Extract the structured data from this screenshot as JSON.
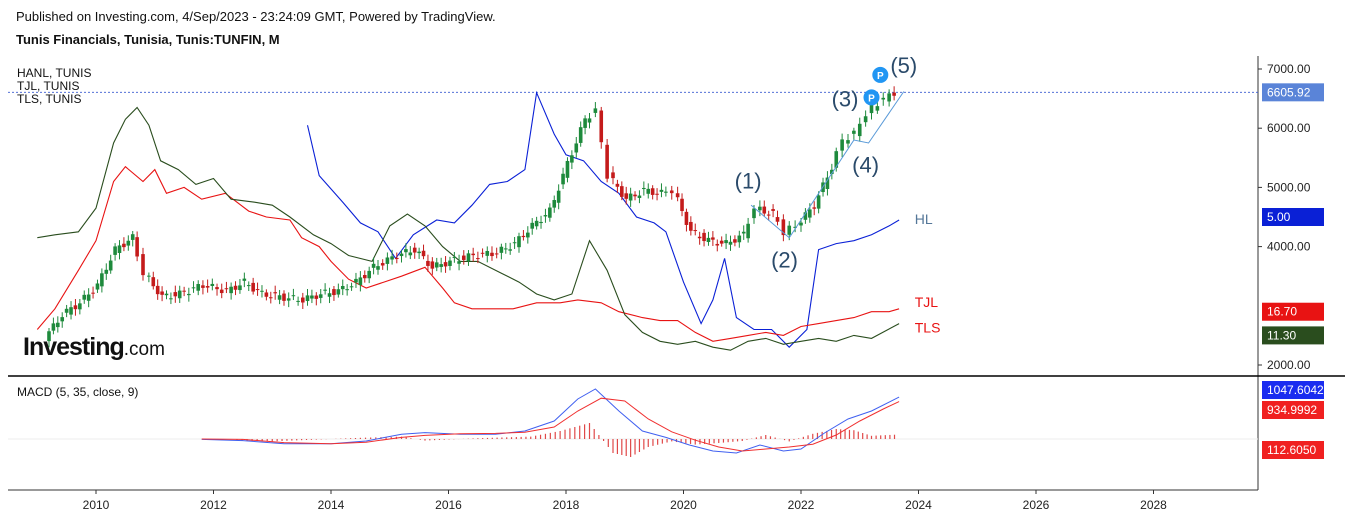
{
  "header": {
    "published": "Published on Investing.com, 4/Sep/2023 - 23:24:09 GMT, Powered by TradingView.",
    "symbol": "Tunis Financials, Tunisia, Tunis:TUNFIN, M"
  },
  "overlays": [
    "HANL, TUNIS",
    "TJL, TUNIS",
    "TLS, TUNIS"
  ],
  "watermark": {
    "brand": "Investing",
    "suffix": ".com"
  },
  "macd": {
    "label": "MACD (5, 35, close, 9)"
  },
  "colors": {
    "candle_up": "#1e8a3c",
    "candle_down": "#c41b1b",
    "hanl": "#0a20d6",
    "tjl": "#e81313",
    "tls": "#2a4d1e",
    "macd": "#4060f0",
    "signal": "#f03030"
  },
  "chart_data": [
    {
      "type": "candlestick",
      "title": "Tunis Financials, Tunisia, Tunis:TUNFIN, M",
      "x_axis": {
        "ticks": [
          "2010",
          "2012",
          "2014",
          "2016",
          "2018",
          "2020",
          "2022",
          "2024",
          "2026",
          "2028"
        ]
      },
      "y_axis": {
        "ticks": [
          "7000.00",
          "6000.00",
          "5000.00",
          "4000.00",
          "2000.00"
        ],
        "range": [
          1800,
          7300
        ]
      },
      "price": [
        [
          2009.2,
          2450
        ],
        [
          2009.5,
          2850
        ],
        [
          2009.8,
          3050
        ],
        [
          2010.1,
          3350
        ],
        [
          2010.4,
          3950
        ],
        [
          2010.7,
          4150
        ],
        [
          2010.9,
          3550
        ],
        [
          2011.2,
          3150
        ],
        [
          2011.5,
          3200
        ],
        [
          2011.9,
          3350
        ],
        [
          2012.3,
          3250
        ],
        [
          2012.6,
          3400
        ],
        [
          2012.9,
          3200
        ],
        [
          2013.2,
          3150
        ],
        [
          2013.6,
          3100
        ],
        [
          2013.9,
          3200
        ],
        [
          2014.2,
          3250
        ],
        [
          2014.5,
          3400
        ],
        [
          2014.8,
          3650
        ],
        [
          2015.2,
          3850
        ],
        [
          2015.5,
          3950
        ],
        [
          2015.8,
          3650
        ],
        [
          2016.1,
          3750
        ],
        [
          2016.5,
          3850
        ],
        [
          2016.9,
          3900
        ],
        [
          2017.2,
          4050
        ],
        [
          2017.5,
          4350
        ],
        [
          2017.8,
          4600
        ],
        [
          2018.1,
          5400
        ],
        [
          2018.4,
          6150
        ],
        [
          2018.6,
          6300
        ],
        [
          2018.8,
          5200
        ],
        [
          2019.1,
          4800
        ],
        [
          2019.4,
          4950
        ],
        [
          2019.7,
          4900
        ],
        [
          2019.9,
          4950
        ],
        [
          2020.2,
          4250
        ],
        [
          2020.5,
          4100
        ],
        [
          2020.8,
          4050
        ],
        [
          2021.1,
          4200
        ],
        [
          2021.3,
          4650
        ],
        [
          2021.6,
          4550
        ],
        [
          2021.8,
          4250
        ],
        [
          2022.0,
          4350
        ],
        [
          2022.3,
          4700
        ],
        [
          2022.6,
          5350
        ],
        [
          2022.8,
          5800
        ],
        [
          2023.0,
          5900
        ],
        [
          2023.1,
          6100
        ],
        [
          2023.3,
          6350
        ],
        [
          2023.5,
          6500
        ],
        [
          2023.67,
          6605.92
        ]
      ],
      "last_price": "6605.92",
      "wave_labels": [
        "(1)",
        "(2)",
        "(3)",
        "(4)",
        "(5)"
      ]
    },
    {
      "type": "line",
      "series": [
        {
          "name": "HL",
          "badge": "5.00",
          "points": [
            [
              2013.6,
              6050
            ],
            [
              2013.8,
              5200
            ],
            [
              2014.2,
              4750
            ],
            [
              2014.5,
              4400
            ],
            [
              2014.8,
              4250
            ],
            [
              2015.1,
              3800
            ],
            [
              2015.4,
              4200
            ],
            [
              2015.8,
              4450
            ],
            [
              2016.1,
              4400
            ],
            [
              2016.4,
              4700
            ],
            [
              2016.7,
              5050
            ],
            [
              2017.0,
              5100
            ],
            [
              2017.3,
              5300
            ],
            [
              2017.5,
              6600
            ],
            [
              2017.8,
              5900
            ],
            [
              2018.0,
              5550
            ],
            [
              2018.3,
              5450
            ],
            [
              2018.6,
              5100
            ],
            [
              2018.9,
              4900
            ],
            [
              2019.2,
              4500
            ],
            [
              2019.5,
              4400
            ],
            [
              2019.7,
              4250
            ],
            [
              2020.0,
              3400
            ],
            [
              2020.3,
              2700
            ],
            [
              2020.5,
              3100
            ],
            [
              2020.7,
              3800
            ],
            [
              2020.9,
              2800
            ],
            [
              2021.2,
              2600
            ],
            [
              2021.5,
              2600
            ],
            [
              2021.8,
              2300
            ],
            [
              2022.1,
              2600
            ],
            [
              2022.3,
              3950
            ],
            [
              2022.6,
              4050
            ],
            [
              2022.9,
              4100
            ],
            [
              2023.2,
              4200
            ],
            [
              2023.5,
              4350
            ],
            [
              2023.67,
              4450
            ]
          ]
        },
        {
          "name": "TJL",
          "badge": "16.70",
          "points": [
            [
              2009.0,
              2600
            ],
            [
              2009.3,
              2950
            ],
            [
              2009.7,
              3600
            ],
            [
              2010.0,
              4100
            ],
            [
              2010.3,
              5100
            ],
            [
              2010.5,
              5350
            ],
            [
              2010.8,
              5100
            ],
            [
              2011.0,
              5300
            ],
            [
              2011.2,
              4900
            ],
            [
              2011.5,
              5000
            ],
            [
              2011.8,
              4800
            ],
            [
              2012.2,
              4900
            ],
            [
              2012.6,
              4600
            ],
            [
              2012.9,
              4500
            ],
            [
              2013.3,
              4450
            ],
            [
              2013.5,
              4150
            ],
            [
              2013.8,
              4000
            ],
            [
              2014.0,
              3750
            ],
            [
              2014.3,
              3450
            ],
            [
              2014.6,
              3300
            ],
            [
              2014.9,
              3400
            ],
            [
              2015.2,
              3500
            ],
            [
              2015.6,
              3650
            ],
            [
              2015.9,
              3300
            ],
            [
              2016.1,
              3050
            ],
            [
              2016.4,
              2950
            ],
            [
              2016.8,
              2950
            ],
            [
              2017.1,
              2950
            ],
            [
              2017.5,
              3050
            ],
            [
              2017.9,
              3050
            ],
            [
              2018.2,
              3100
            ],
            [
              2018.6,
              3050
            ],
            [
              2018.9,
              2900
            ],
            [
              2019.3,
              2800
            ],
            [
              2019.6,
              2750
            ],
            [
              2019.9,
              2750
            ],
            [
              2020.2,
              2550
            ],
            [
              2020.5,
              2400
            ],
            [
              2020.8,
              2450
            ],
            [
              2021.1,
              2500
            ],
            [
              2021.4,
              2550
            ],
            [
              2021.7,
              2500
            ],
            [
              2022.0,
              2650
            ],
            [
              2022.3,
              2700
            ],
            [
              2022.6,
              2750
            ],
            [
              2022.9,
              2800
            ],
            [
              2023.2,
              2900
            ],
            [
              2023.5,
              2900
            ],
            [
              2023.67,
              2950
            ]
          ]
        },
        {
          "name": "TLS",
          "badge": "11.30",
          "points": [
            [
              2009.0,
              4150
            ],
            [
              2009.3,
              4200
            ],
            [
              2009.7,
              4250
            ],
            [
              2010.0,
              4650
            ],
            [
              2010.3,
              5750
            ],
            [
              2010.5,
              6150
            ],
            [
              2010.7,
              6350
            ],
            [
              2010.9,
              6050
            ],
            [
              2011.1,
              5450
            ],
            [
              2011.4,
              5300
            ],
            [
              2011.7,
              5050
            ],
            [
              2012.0,
              5150
            ],
            [
              2012.3,
              4800
            ],
            [
              2012.7,
              4750
            ],
            [
              2013.0,
              4700
            ],
            [
              2013.3,
              4500
            ],
            [
              2013.7,
              4200
            ],
            [
              2014.0,
              4050
            ],
            [
              2014.3,
              3850
            ],
            [
              2014.7,
              3750
            ],
            [
              2015.0,
              4350
            ],
            [
              2015.3,
              4550
            ],
            [
              2015.6,
              4350
            ],
            [
              2015.9,
              4000
            ],
            [
              2016.2,
              3750
            ],
            [
              2016.5,
              3750
            ],
            [
              2016.9,
              3550
            ],
            [
              2017.2,
              3400
            ],
            [
              2017.5,
              3200
            ],
            [
              2017.8,
              3100
            ],
            [
              2018.1,
              3200
            ],
            [
              2018.4,
              4100
            ],
            [
              2018.7,
              3600
            ],
            [
              2019.0,
              2850
            ],
            [
              2019.3,
              2550
            ],
            [
              2019.6,
              2400
            ],
            [
              2019.9,
              2350
            ],
            [
              2020.2,
              2400
            ],
            [
              2020.5,
              2300
            ],
            [
              2020.8,
              2250
            ],
            [
              2021.1,
              2400
            ],
            [
              2021.4,
              2450
            ],
            [
              2021.7,
              2350
            ],
            [
              2022.0,
              2400
            ],
            [
              2022.3,
              2450
            ],
            [
              2022.6,
              2400
            ],
            [
              2022.9,
              2500
            ],
            [
              2023.2,
              2450
            ],
            [
              2023.67,
              2700
            ]
          ]
        }
      ]
    },
    {
      "type": "line",
      "title": "MACD (5, 35, close, 9)",
      "y_badges": [
        "1047.6042",
        "934.9992",
        "112.6050"
      ],
      "series": [
        {
          "name": "MACD",
          "points": [
            [
              2011.8,
              -10
            ],
            [
              2012.5,
              -40
            ],
            [
              2013.2,
              -120
            ],
            [
              2014.0,
              -120
            ],
            [
              2014.6,
              -50
            ],
            [
              2015.2,
              120
            ],
            [
              2015.6,
              160
            ],
            [
              2016.2,
              120
            ],
            [
              2016.8,
              120
            ],
            [
              2017.3,
              200
            ],
            [
              2017.8,
              450
            ],
            [
              2018.2,
              1000
            ],
            [
              2018.5,
              1250
            ],
            [
              2018.9,
              700
            ],
            [
              2019.3,
              200
            ],
            [
              2019.7,
              40
            ],
            [
              2020.1,
              -150
            ],
            [
              2020.5,
              -300
            ],
            [
              2020.9,
              -350
            ],
            [
              2021.3,
              -150
            ],
            [
              2021.7,
              -300
            ],
            [
              2022.0,
              -250
            ],
            [
              2022.4,
              150
            ],
            [
              2022.8,
              500
            ],
            [
              2023.2,
              700
            ],
            [
              2023.67,
              1047.6
            ]
          ]
        },
        {
          "name": "Signal",
          "points": [
            [
              2011.8,
              0
            ],
            [
              2012.5,
              -10
            ],
            [
              2013.2,
              -90
            ],
            [
              2014.0,
              -120
            ],
            [
              2014.6,
              -80
            ],
            [
              2015.2,
              40
            ],
            [
              2015.6,
              90
            ],
            [
              2016.2,
              130
            ],
            [
              2016.8,
              140
            ],
            [
              2017.3,
              170
            ],
            [
              2017.8,
              300
            ],
            [
              2018.2,
              700
            ],
            [
              2018.6,
              1020
            ],
            [
              2019.0,
              950
            ],
            [
              2019.4,
              500
            ],
            [
              2019.8,
              180
            ],
            [
              2020.2,
              -30
            ],
            [
              2020.6,
              -200
            ],
            [
              2021.0,
              -300
            ],
            [
              2021.4,
              -250
            ],
            [
              2021.8,
              -200
            ],
            [
              2022.2,
              -130
            ],
            [
              2022.6,
              100
            ],
            [
              2023.0,
              450
            ],
            [
              2023.4,
              750
            ],
            [
              2023.67,
              935
            ]
          ]
        },
        {
          "name": "Histogram",
          "points": [
            [
              2012.4,
              -40
            ],
            [
              2013.0,
              -60
            ],
            [
              2013.5,
              -30
            ],
            [
              2014.5,
              30
            ],
            [
              2015.2,
              60
            ],
            [
              2015.6,
              -40
            ],
            [
              2016.5,
              20
            ],
            [
              2017.4,
              60
            ],
            [
              2017.9,
              200
            ],
            [
              2018.4,
              400
            ],
            [
              2018.8,
              -350
            ],
            [
              2019.1,
              -450
            ],
            [
              2019.4,
              -200
            ],
            [
              2019.8,
              -60
            ],
            [
              2020.2,
              -140
            ],
            [
              2020.6,
              -100
            ],
            [
              2021.0,
              -50
            ],
            [
              2021.4,
              100
            ],
            [
              2021.8,
              -60
            ],
            [
              2022.2,
              130
            ],
            [
              2022.6,
              250
            ],
            [
              2022.9,
              220
            ],
            [
              2023.2,
              80
            ],
            [
              2023.67,
              112.6
            ]
          ]
        }
      ]
    }
  ]
}
